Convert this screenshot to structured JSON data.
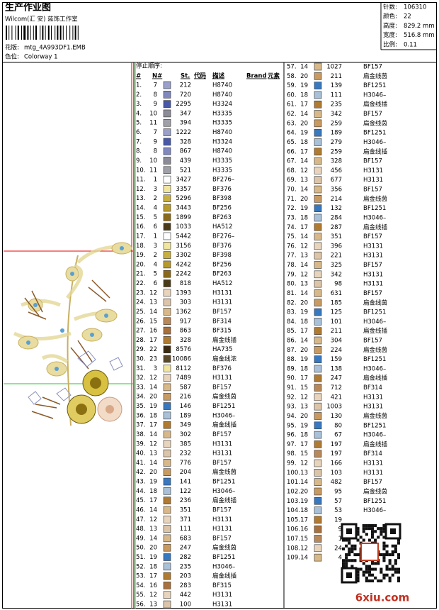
{
  "header": {
    "title": "生产作业图",
    "company": "Wilcom(汇 安) 蓝饰工作室",
    "design_label": "花版:",
    "design": "mtg_4A993DF1.EMB",
    "colorway_label": "色位:",
    "colorway": "Colorway 1"
  },
  "info": [
    [
      "针数:",
      "106310"
    ],
    [
      "颜色:",
      "22"
    ],
    [
      "高度:",
      "829.2 mm"
    ],
    [
      "宽度:",
      "516.8 mm"
    ],
    [
      "比例:",
      "0.11"
    ]
  ],
  "table": {
    "caption": "停止顺序:",
    "headers": [
      "#",
      "N#",
      "St.",
      "代码",
      "描述",
      "Brand",
      "元素"
    ],
    "rows": [
      [
        "1.",
        7,
        212,
        "H8740"
      ],
      [
        "2.",
        8,
        720,
        "H8740"
      ],
      [
        "3.",
        9,
        2295,
        "H3324"
      ],
      [
        "4.",
        10,
        347,
        "H3335"
      ],
      [
        "5.",
        11,
        394,
        "H3335"
      ],
      [
        "6.",
        7,
        1222,
        "H8740"
      ],
      [
        "7.",
        9,
        328,
        "H3324"
      ],
      [
        "8.",
        8,
        867,
        "H8740"
      ],
      [
        "9.",
        10,
        439,
        "H3335"
      ],
      [
        "10.",
        11,
        521,
        "H3335"
      ],
      [
        "11.",
        1,
        3427,
        "BF276–"
      ],
      [
        "12.",
        3,
        3357,
        "BF376"
      ],
      [
        "13.",
        2,
        5296,
        "BF398"
      ],
      [
        "14.",
        4,
        3443,
        "BF256"
      ],
      [
        "15.",
        5,
        1899,
        "BF263"
      ],
      [
        "16.",
        6,
        1033,
        "HA512"
      ],
      [
        "17.",
        1,
        5442,
        "BF276–"
      ],
      [
        "18.",
        3,
        3156,
        "BF376"
      ],
      [
        "19.",
        2,
        3302,
        "BF398"
      ],
      [
        "20.",
        4,
        4242,
        "BF256"
      ],
      [
        "21.",
        5,
        2242,
        "BF263"
      ],
      [
        "22.",
        6,
        818,
        "HA512"
      ],
      [
        "23.",
        12,
        1393,
        "H3131"
      ],
      [
        "24.",
        13,
        303,
        "H3131"
      ],
      [
        "25.",
        14,
        1362,
        "BF157"
      ],
      [
        "26.",
        15,
        917,
        "BF314"
      ],
      [
        "27.",
        16,
        863,
        "BF315"
      ],
      [
        "28.",
        17,
        328,
        "扁金线插"
      ],
      [
        "29.",
        22,
        8576,
        "HA735"
      ],
      [
        "30.",
        23,
        10086,
        "扁金线浓"
      ],
      [
        "31.",
        3,
        8112,
        "BF376"
      ],
      [
        "32.",
        12,
        7489,
        "H3131"
      ],
      [
        "33.",
        14,
        587,
        "BF157"
      ],
      [
        "34.",
        20,
        216,
        "扁金线茵"
      ],
      [
        "35.",
        19,
        146,
        "BF1251"
      ],
      [
        "36.",
        18,
        189,
        "H3046–"
      ],
      [
        "37.",
        17,
        349,
        "扁金线插"
      ],
      [
        "38.",
        14,
        302,
        "BF157"
      ],
      [
        "39.",
        12,
        385,
        "H3131"
      ],
      [
        "40.",
        13,
        232,
        "H3131"
      ],
      [
        "41.",
        14,
        776,
        "BF157"
      ],
      [
        "42.",
        20,
        204,
        "扁金线茵"
      ],
      [
        "43.",
        19,
        141,
        "BF1251"
      ],
      [
        "44.",
        18,
        122,
        "H3046–"
      ],
      [
        "45.",
        17,
        236,
        "扁金线插"
      ],
      [
        "46.",
        14,
        351,
        "BF157"
      ],
      [
        "47.",
        12,
        371,
        "H3131"
      ],
      [
        "48.",
        13,
        111,
        "H3131"
      ],
      [
        "49.",
        14,
        683,
        "BF157"
      ],
      [
        "50.",
        20,
        247,
        "扁金线茵"
      ],
      [
        "51.",
        19,
        282,
        "BF1251"
      ],
      [
        "52.",
        18,
        235,
        "H3046–"
      ],
      [
        "53.",
        17,
        203,
        "扁金线插"
      ],
      [
        "54.",
        16,
        283,
        "BF315"
      ],
      [
        "55.",
        12,
        442,
        "H3131"
      ],
      [
        "56.",
        13,
        100,
        "H3131"
      ],
      [
        "57.",
        14,
        1027,
        "BF157"
      ],
      [
        "58.",
        20,
        211,
        "扁金线茵"
      ],
      [
        "59.",
        19,
        139,
        "BF1251"
      ],
      [
        "60.",
        18,
        111,
        "H3046–"
      ],
      [
        "61.",
        17,
        235,
        "扁金线插"
      ],
      [
        "62.",
        14,
        342,
        "BF157"
      ],
      [
        "63.",
        20,
        259,
        "扁金线茵"
      ],
      [
        "64.",
        19,
        189,
        "BF1251"
      ],
      [
        "65.",
        18,
        279,
        "H3046–"
      ],
      [
        "66.",
        17,
        259,
        "扁金线插"
      ],
      [
        "67.",
        14,
        328,
        "BF157"
      ],
      [
        "68.",
        12,
        456,
        "H3131"
      ],
      [
        "69.",
        13,
        677,
        "H3131"
      ],
      [
        "70.",
        14,
        356,
        "BF157"
      ],
      [
        "71.",
        20,
        214,
        "扁金线茵"
      ],
      [
        "72.",
        19,
        132,
        "BF1251"
      ],
      [
        "73.",
        18,
        284,
        "H3046–"
      ],
      [
        "74.",
        17,
        287,
        "扁金线插"
      ],
      [
        "75.",
        14,
        351,
        "BF157"
      ],
      [
        "76.",
        12,
        396,
        "H3131"
      ],
      [
        "77.",
        13,
        221,
        "H3131"
      ],
      [
        "78.",
        14,
        325,
        "BF157"
      ],
      [
        "79.",
        12,
        342,
        "H3131"
      ],
      [
        "80.",
        13,
        98,
        "H3131"
      ],
      [
        "81.",
        14,
        631,
        "BF157"
      ],
      [
        "82.",
        20,
        185,
        "扁金线茵"
      ],
      [
        "83.",
        19,
        125,
        "BF1251"
      ],
      [
        "84.",
        18,
        101,
        "H3046–"
      ],
      [
        "85.",
        17,
        211,
        "扁金线插"
      ],
      [
        "86.",
        14,
        304,
        "BF157"
      ],
      [
        "87.",
        20,
        224,
        "扁金线茵"
      ],
      [
        "88.",
        19,
        159,
        "BF1251"
      ],
      [
        "89.",
        18,
        138,
        "H3046–"
      ],
      [
        "90.",
        17,
        247,
        "扁金线插"
      ],
      [
        "91.",
        15,
        712,
        "BF314"
      ],
      [
        "92.",
        12,
        421,
        "H3131"
      ],
      [
        "93.",
        13,
        1003,
        "H3131"
      ],
      [
        "94.",
        20,
        130,
        "扁金线茵"
      ],
      [
        "95.",
        19,
        80,
        "BF1251"
      ],
      [
        "96.",
        18,
        67,
        "H3046–"
      ],
      [
        "97.",
        17,
        197,
        "扁金线插"
      ],
      [
        "98.",
        15,
        197,
        "BF314"
      ],
      [
        "99.",
        12,
        166,
        "H3131"
      ],
      [
        "100.",
        13,
        103,
        "H3131"
      ],
      [
        "101.",
        14,
        482,
        "BF157"
      ],
      [
        "102.",
        20,
        95,
        "扁金线茵"
      ],
      [
        "103.",
        19,
        57,
        "BF1251"
      ],
      [
        "104.",
        18,
        53,
        "H3046–"
      ],
      [
        "105.",
        17,
        "19"
      ],
      [
        "106.",
        16,
        "9"
      ],
      [
        "107.",
        15,
        "1"
      ],
      [
        "108.",
        12,
        "24"
      ],
      [
        "109.",
        14,
        "4"
      ]
    ]
  },
  "needle_colors": {
    "1": "#ffffff",
    "2": "#c8b040",
    "3": "#f0e6a0",
    "4": "#b89a2c",
    "5": "#8a6a1a",
    "6": "#4a3a18",
    "7": "#9aa0c8",
    "8": "#8088c0",
    "9": "#4858a8",
    "10": "#8c8c98",
    "11": "#a0a0a8",
    "12": "#e8d4bc",
    "13": "#dcc4a8",
    "14": "#d8b888",
    "15": "#b88858",
    "16": "#a8703c",
    "17": "#b07a30",
    "18": "#a8c0d8",
    "19": "#3878c0",
    "20": "#c89a60",
    "22": "#3a2a10",
    "23": "#5a4a2a"
  },
  "watermark": "6xiu.com"
}
